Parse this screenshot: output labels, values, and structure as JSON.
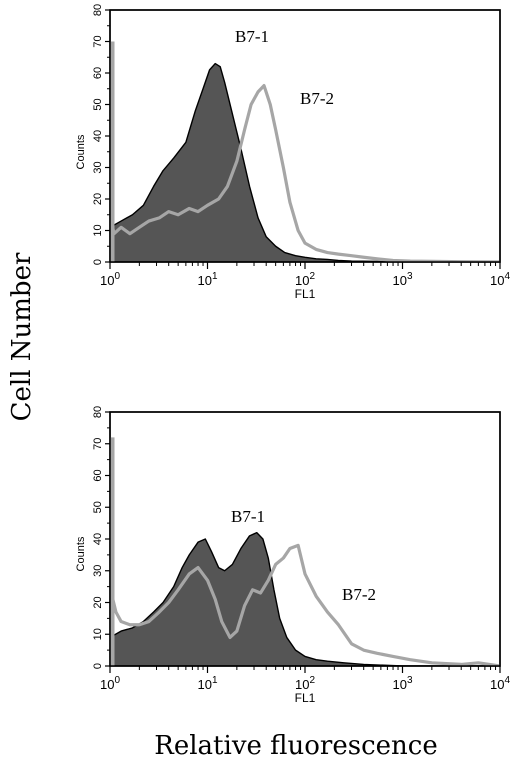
{
  "figure": {
    "ylabel": "Cell Number",
    "xlabel": "Relative fluorescence"
  },
  "chart_data": [
    {
      "type": "area",
      "xlabel": "FL1",
      "ylabel": "Counts",
      "xscale": "log",
      "xlim": [
        1,
        10000
      ],
      "ylim": [
        0,
        80
      ],
      "x_ticks": [
        "0",
        "1",
        "2",
        "3",
        "4"
      ],
      "y_ticks": [
        0,
        10,
        20,
        30,
        40,
        50,
        60,
        70,
        80
      ],
      "grid": false,
      "series": [
        {
          "name": "B7-1",
          "style": "filled",
          "color": "#555555",
          "x": [
            1.0,
            1.3,
            1.7,
            2.2,
            2.8,
            3.5,
            4.5,
            6.0,
            7.5,
            9.0,
            10.5,
            12.0,
            13.5,
            15.0,
            18.0,
            22.0,
            27.0,
            33.0,
            40.0,
            50.0,
            62.0,
            80.0,
            100.0,
            130.0,
            170.0,
            220.0,
            300.0,
            500.0,
            1000.0,
            3000.0,
            10000.0
          ],
          "values": [
            11,
            13,
            15,
            18,
            24,
            29,
            33,
            38,
            48,
            55,
            61,
            63,
            62,
            57,
            47,
            36,
            24,
            14,
            8,
            5,
            3,
            2,
            1.5,
            1,
            0.8,
            0.5,
            0.3,
            0.2,
            0,
            0,
            0
          ]
        },
        {
          "name": "B7-2",
          "style": "line",
          "color": "#a6a6a6",
          "x": [
            1.0,
            1.1,
            1.3,
            1.6,
            2.0,
            2.5,
            3.2,
            4.0,
            5.0,
            6.5,
            8.0,
            10.0,
            13.0,
            16.0,
            20.0,
            24.0,
            28.0,
            33.0,
            38.0,
            44.0,
            50.0,
            60.0,
            70.0,
            85.0,
            100.0,
            130.0,
            170.0,
            220.0,
            300.0,
            400.0,
            550.0,
            800.0,
            1200.0,
            2000.0,
            4000.0,
            10000.0
          ],
          "values": [
            15,
            9,
            11,
            9,
            11,
            13,
            14,
            16,
            15,
            17,
            16,
            18,
            20,
            24,
            32,
            42,
            50,
            54,
            56,
            50,
            42,
            30,
            19,
            10,
            6,
            4,
            3,
            2.5,
            2,
            1.5,
            1,
            0.5,
            0.3,
            0.2,
            0.1,
            0
          ]
        }
      ]
    },
    {
      "type": "area",
      "xlabel": "FL1",
      "ylabel": "Counts",
      "xscale": "log",
      "xlim": [
        1,
        10000
      ],
      "ylim": [
        0,
        80
      ],
      "x_ticks": [
        "0",
        "1",
        "2",
        "3",
        "4"
      ],
      "y_ticks": [
        0,
        10,
        20,
        30,
        40,
        50,
        60,
        70,
        80
      ],
      "grid": false,
      "series": [
        {
          "name": "B7-1",
          "style": "filled",
          "color": "#555555",
          "x": [
            1.0,
            1.3,
            1.7,
            2.2,
            2.8,
            3.5,
            4.5,
            5.5,
            6.5,
            8.0,
            9.5,
            11.0,
            13.0,
            15.0,
            18.0,
            22.0,
            27.0,
            32.0,
            37.0,
            42.0,
            48.0,
            55.0,
            65.0,
            80.0,
            100.0,
            130.0,
            170.0,
            250.0,
            400.0,
            1000.0,
            10000.0
          ],
          "values": [
            9,
            11,
            12,
            14,
            17,
            20,
            25,
            31,
            35,
            39,
            40,
            36,
            31,
            30,
            32,
            37,
            41,
            42,
            40,
            34,
            24,
            15,
            9,
            5,
            3,
            2,
            1.5,
            1,
            0.5,
            0,
            0
          ]
        },
        {
          "name": "B7-2",
          "style": "line",
          "color": "#a6a6a6",
          "x": [
            1.0,
            1.05,
            1.15,
            1.3,
            1.6,
            2.0,
            2.5,
            3.2,
            4.0,
            5.0,
            6.5,
            8.0,
            10.0,
            12.0,
            14.0,
            17.0,
            20.0,
            24.0,
            29.0,
            35.0,
            42.0,
            50.0,
            60.0,
            70.0,
            85.0,
            100.0,
            130.0,
            170.0,
            220.0,
            300.0,
            400.0,
            550.0,
            800.0,
            1200.0,
            2000.0,
            4000.0,
            6000.0,
            10000.0
          ],
          "values": [
            26,
            22,
            17,
            14,
            13,
            13,
            14,
            17,
            20,
            24,
            29,
            31,
            27,
            21,
            14,
            9,
            11,
            19,
            24,
            23,
            27,
            32,
            34,
            37,
            38,
            29,
            22,
            17,
            13,
            7,
            5,
            4,
            3,
            2,
            1,
            0.5,
            1,
            0
          ]
        }
      ]
    }
  ]
}
